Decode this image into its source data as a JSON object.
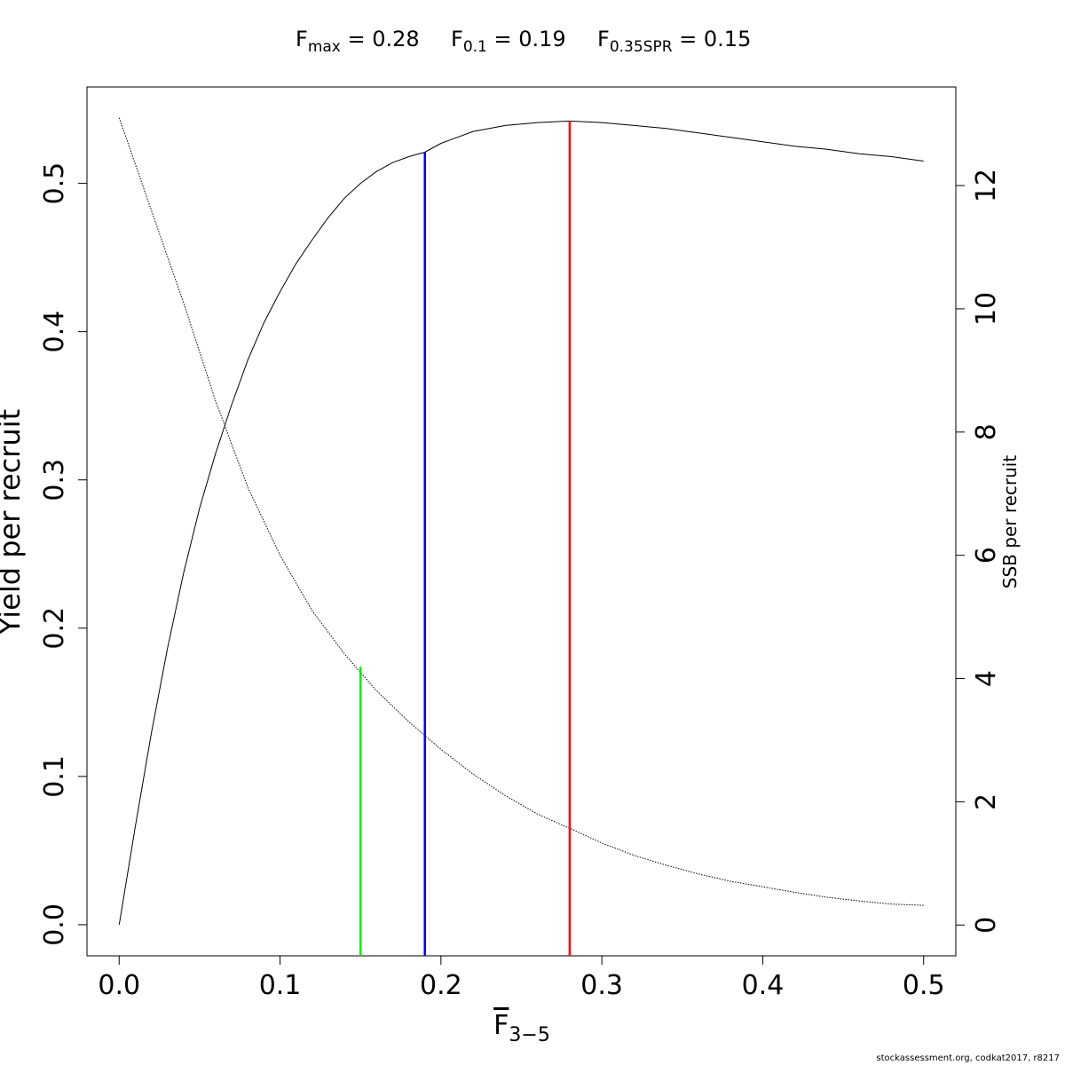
{
  "chart_data": {
    "type": "line",
    "title_parts": [
      {
        "base": "F",
        "sub": "max",
        "rest": " = 0.28"
      },
      {
        "base": "F",
        "sub": "0.1",
        "rest": " = 0.19"
      },
      {
        "base": "F",
        "sub": "0.35SPR",
        "rest": " = 0.15"
      }
    ],
    "xlabel": {
      "base": "F",
      "sub": "3−5"
    },
    "ylabel": "Yield per recruit",
    "y2label": "SSB per recruit",
    "xlim": [
      -0.02,
      0.52
    ],
    "ylim": [
      -0.021,
      0.565
    ],
    "y2lim": [
      -0.5,
      13.6
    ],
    "xticks": [
      "0.0",
      "0.1",
      "0.2",
      "0.3",
      "0.4",
      "0.5"
    ],
    "yticks": [
      "0.0",
      "0.1",
      "0.2",
      "0.3",
      "0.4",
      "0.5"
    ],
    "y2ticks": [
      "0",
      "2",
      "4",
      "6",
      "8",
      "10",
      "12"
    ],
    "series": [
      {
        "name": "Yield per recruit",
        "axis": "left",
        "style": "solid",
        "color": "#000000",
        "x": [
          0.0,
          0.01,
          0.02,
          0.03,
          0.04,
          0.05,
          0.06,
          0.07,
          0.08,
          0.09,
          0.1,
          0.11,
          0.12,
          0.13,
          0.14,
          0.15,
          0.16,
          0.17,
          0.18,
          0.19,
          0.2,
          0.22,
          0.24,
          0.26,
          0.28,
          0.3,
          0.32,
          0.34,
          0.36,
          0.38,
          0.4,
          0.42,
          0.44,
          0.46,
          0.48,
          0.5
        ],
        "y": [
          0.0,
          0.066,
          0.129,
          0.186,
          0.237,
          0.281,
          0.318,
          0.351,
          0.381,
          0.406,
          0.427,
          0.446,
          0.462,
          0.477,
          0.49,
          0.5,
          0.508,
          0.514,
          0.518,
          0.521,
          0.527,
          0.535,
          0.539,
          0.541,
          0.542,
          0.541,
          0.539,
          0.537,
          0.534,
          0.531,
          0.528,
          0.525,
          0.523,
          0.52,
          0.518,
          0.515
        ]
      },
      {
        "name": "SSB per recruit",
        "axis": "right",
        "style": "dotted",
        "color": "#000000",
        "x": [
          0.0,
          0.02,
          0.04,
          0.06,
          0.08,
          0.1,
          0.12,
          0.14,
          0.16,
          0.18,
          0.2,
          0.22,
          0.24,
          0.26,
          0.28,
          0.3,
          0.32,
          0.34,
          0.36,
          0.38,
          0.4,
          0.42,
          0.44,
          0.46,
          0.48,
          0.5
        ],
        "y": [
          13.1,
          11.6,
          10.1,
          8.5,
          7.1,
          6.0,
          5.1,
          4.4,
          3.8,
          3.3,
          2.85,
          2.45,
          2.1,
          1.8,
          1.57,
          1.33,
          1.13,
          0.97,
          0.83,
          0.71,
          0.62,
          0.53,
          0.45,
          0.39,
          0.34,
          0.32
        ]
      }
    ],
    "reference_lines": [
      {
        "name": "F0.35SPR",
        "x": 0.15,
        "y_top": 0.174,
        "color": "#00ee00"
      },
      {
        "name": "F0.1",
        "x": 0.19,
        "y_top": 0.521,
        "color": "#0000ff"
      },
      {
        "name": "Fmax",
        "x": 0.28,
        "y_top": 0.542,
        "color": "#ff0000"
      }
    ],
    "grid": false,
    "legend": "none"
  },
  "credit": "stockassessment.org, codkat2017, r8217"
}
